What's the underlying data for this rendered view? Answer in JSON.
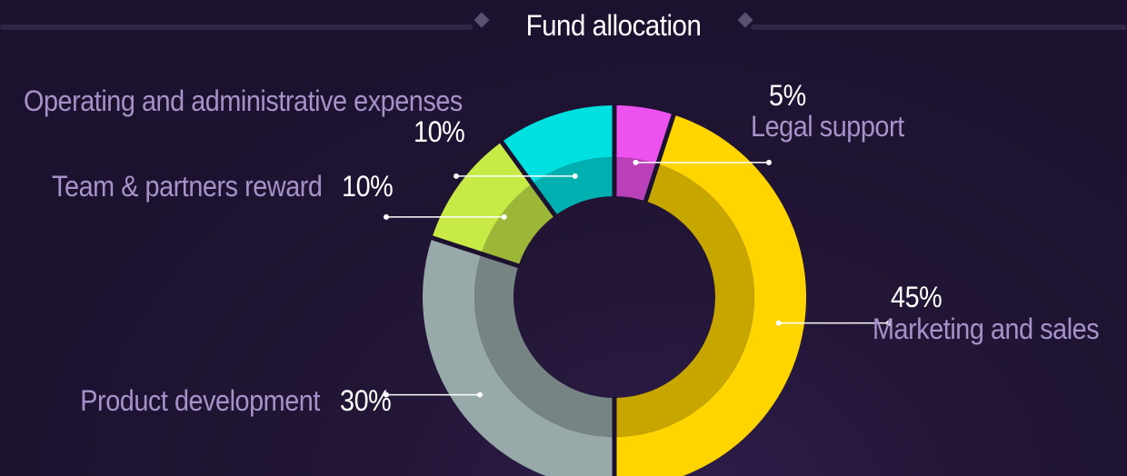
{
  "title": "Fund allocation",
  "chart_data": {
    "type": "pie",
    "title": "Fund allocation",
    "slices": [
      {
        "label": "Legal support",
        "value": 5,
        "value_label": "5%",
        "color": "#ee52ee"
      },
      {
        "label": "Marketing and sales",
        "value": 45,
        "value_label": "45%",
        "color": "#ffd500"
      },
      {
        "label": "Product development",
        "value": 30,
        "value_label": "30%",
        "color": "#97a9a9"
      },
      {
        "label": "Team & partners reward",
        "value": 10,
        "value_label": "10%",
        "color": "#c8ea47"
      },
      {
        "label": "Operating and administrative expenses",
        "value": 10,
        "value_label": "10%",
        "color": "#00e0e0"
      }
    ]
  }
}
